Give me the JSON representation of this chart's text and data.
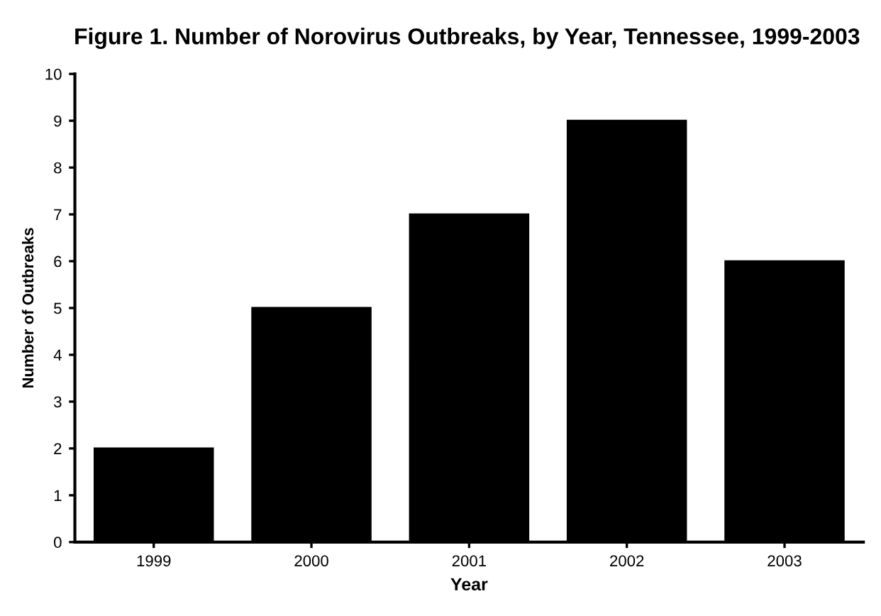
{
  "chart_data": {
    "type": "bar",
    "title": "Figure 1. Number of Norovirus Outbreaks, by Year, Tennessee, 1999-2003",
    "xlabel": "Year",
    "ylabel": "Number of Outbreaks",
    "categories": [
      "1999",
      "2000",
      "2001",
      "2002",
      "2003"
    ],
    "values": [
      2,
      5,
      7,
      9,
      6
    ],
    "color": "#000000",
    "ylim": [
      0,
      10
    ],
    "yticks": [
      0,
      1,
      2,
      3,
      4,
      5,
      6,
      7,
      8,
      9,
      10
    ],
    "grid": false,
    "legend": false
  }
}
